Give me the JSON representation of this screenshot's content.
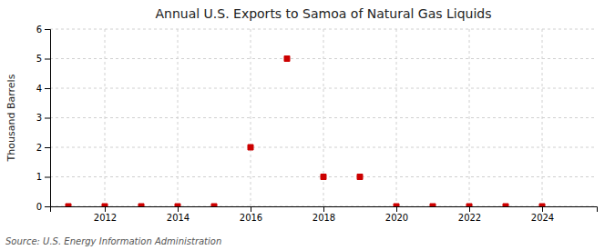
{
  "chart_data": {
    "type": "scatter",
    "title": "Annual U.S. Exports to Samoa of Natural Gas Liquids",
    "ylabel": "Thousand Barrels",
    "annotations": [
      "Source: U.S. Energy Information Administration"
    ],
    "x": [
      2011,
      2012,
      2013,
      2014,
      2015,
      2016,
      2017,
      2018,
      2019,
      2020,
      2021,
      2022,
      2023,
      2024
    ],
    "values": [
      0,
      0,
      0,
      0,
      0,
      2,
      5,
      1,
      1,
      0,
      0,
      0,
      0,
      0
    ],
    "color": "#cc0000",
    "marker": "square",
    "xlim": [
      2010.5,
      2025.5
    ],
    "xticks": [
      2012,
      2014,
      2016,
      2018,
      2020,
      2022,
      2024
    ],
    "ylim": [
      0,
      6
    ],
    "yticks": [
      0,
      1,
      2,
      3,
      4,
      5,
      6
    ],
    "grid": true
  }
}
